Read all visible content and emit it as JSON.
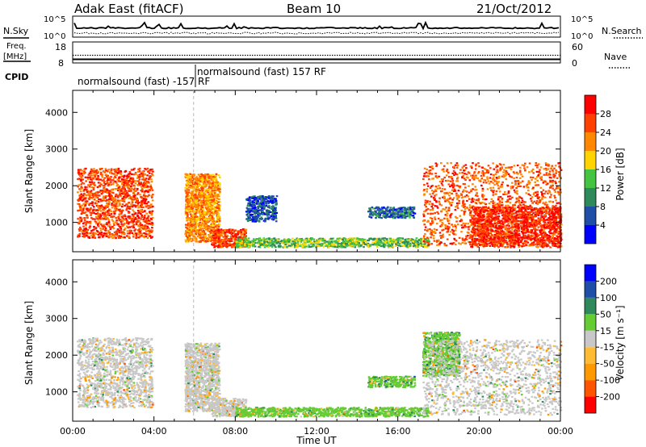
{
  "header": {
    "site": "Adak East (fitACF)",
    "beam": "Beam 10",
    "date": "21/Oct/2012"
  },
  "strips": {
    "nsky_label": "N.Sky",
    "nsearch_label": "N.Search",
    "count_ticks_left": [
      "10^5",
      "10^0"
    ],
    "count_ticks_right": [
      "10^5",
      "10^0"
    ],
    "freq_label": "Freq.",
    "freq_unit": "[MHz]",
    "freq_ticks": [
      "18",
      "8"
    ],
    "nave_label": "Nave",
    "nave_ticks": [
      "60",
      "0"
    ],
    "cpid_label": "CPID",
    "cpid_segments": [
      "normalsound (fast) -157 RF",
      "normalsound (fast) 157 RF"
    ]
  },
  "colors": {
    "power_scale": [
      "#0000ff",
      "#1f4ea8",
      "#2e8a5a",
      "#44c440",
      "#ffd400",
      "#ff8800",
      "#ff4000",
      "#ff0000"
    ],
    "velocity_scale": [
      "#ff0000",
      "#ff5500",
      "#ff9900",
      "#ffbb33",
      "#c8c8c8",
      "#66cc33",
      "#2e8a5a",
      "#1f4ea8",
      "#0000ff"
    ]
  },
  "chart_data": [
    {
      "type": "heatmap",
      "name": "power",
      "ylabel": "Slant Range [km]",
      "yticks": [
        "1000",
        "2000",
        "3000",
        "4000"
      ],
      "ylim": [
        200,
        4600
      ],
      "xlim": [
        "00:00",
        "24:00"
      ],
      "colorbar_label": "Power [dB]",
      "colorbar_ticks": [
        "4",
        "8",
        "12",
        "16",
        "20",
        "24",
        "28"
      ],
      "scatter_regions": [
        {
          "t": [
            0.2,
            3.9
          ],
          "r": [
            550,
            2450
          ],
          "value": 26
        },
        {
          "t": [
            5.5,
            7.2
          ],
          "r": [
            450,
            2300
          ],
          "value": 22
        },
        {
          "t": [
            6.8,
            8.5
          ],
          "r": [
            300,
            800
          ],
          "value": 26
        },
        {
          "t": [
            8.0,
            17.5
          ],
          "r": [
            300,
            550
          ],
          "value": 14
        },
        {
          "t": [
            14.5,
            16.8
          ],
          "r": [
            1100,
            1400
          ],
          "value": 8
        },
        {
          "t": [
            8.5,
            10.0
          ],
          "r": [
            1000,
            1700
          ],
          "value": 6
        },
        {
          "t": [
            17.2,
            24.0
          ],
          "r": [
            350,
            2600
          ],
          "value": 25
        },
        {
          "t": [
            19.5,
            24.0
          ],
          "r": [
            300,
            1400
          ],
          "value": 28
        }
      ]
    },
    {
      "type": "heatmap",
      "name": "velocity",
      "xlabel": "Time UT",
      "ylabel": "Slant Range [km]",
      "yticks": [
        "1000",
        "2000",
        "3000",
        "4000"
      ],
      "ylim": [
        200,
        4600
      ],
      "xticks": [
        "00:00",
        "04:00",
        "08:00",
        "12:00",
        "16:00",
        "20:00",
        "00:00"
      ],
      "xlim": [
        "00:00",
        "24:00"
      ],
      "colorbar_label": "Velocity [m s⁻¹]",
      "colorbar_ticks": [
        "-200",
        "-100",
        "-50",
        "-15",
        "15",
        "50",
        "100",
        "200"
      ],
      "scatter_regions": [
        {
          "t": [
            0.2,
            3.9
          ],
          "r": [
            550,
            2450
          ],
          "value": 0
        },
        {
          "t": [
            5.5,
            7.2
          ],
          "r": [
            450,
            2300
          ],
          "value": 0
        },
        {
          "t": [
            6.8,
            8.5
          ],
          "r": [
            300,
            800
          ],
          "value": 0
        },
        {
          "t": [
            8.0,
            17.5
          ],
          "r": [
            300,
            550
          ],
          "value": 30
        },
        {
          "t": [
            14.5,
            16.8
          ],
          "r": [
            1100,
            1400
          ],
          "value": 40
        },
        {
          "t": [
            17.2,
            19.0
          ],
          "r": [
            1400,
            2600
          ],
          "value": 40
        },
        {
          "t": [
            17.2,
            24.0
          ],
          "r": [
            350,
            2400
          ],
          "value": 0
        }
      ]
    }
  ]
}
